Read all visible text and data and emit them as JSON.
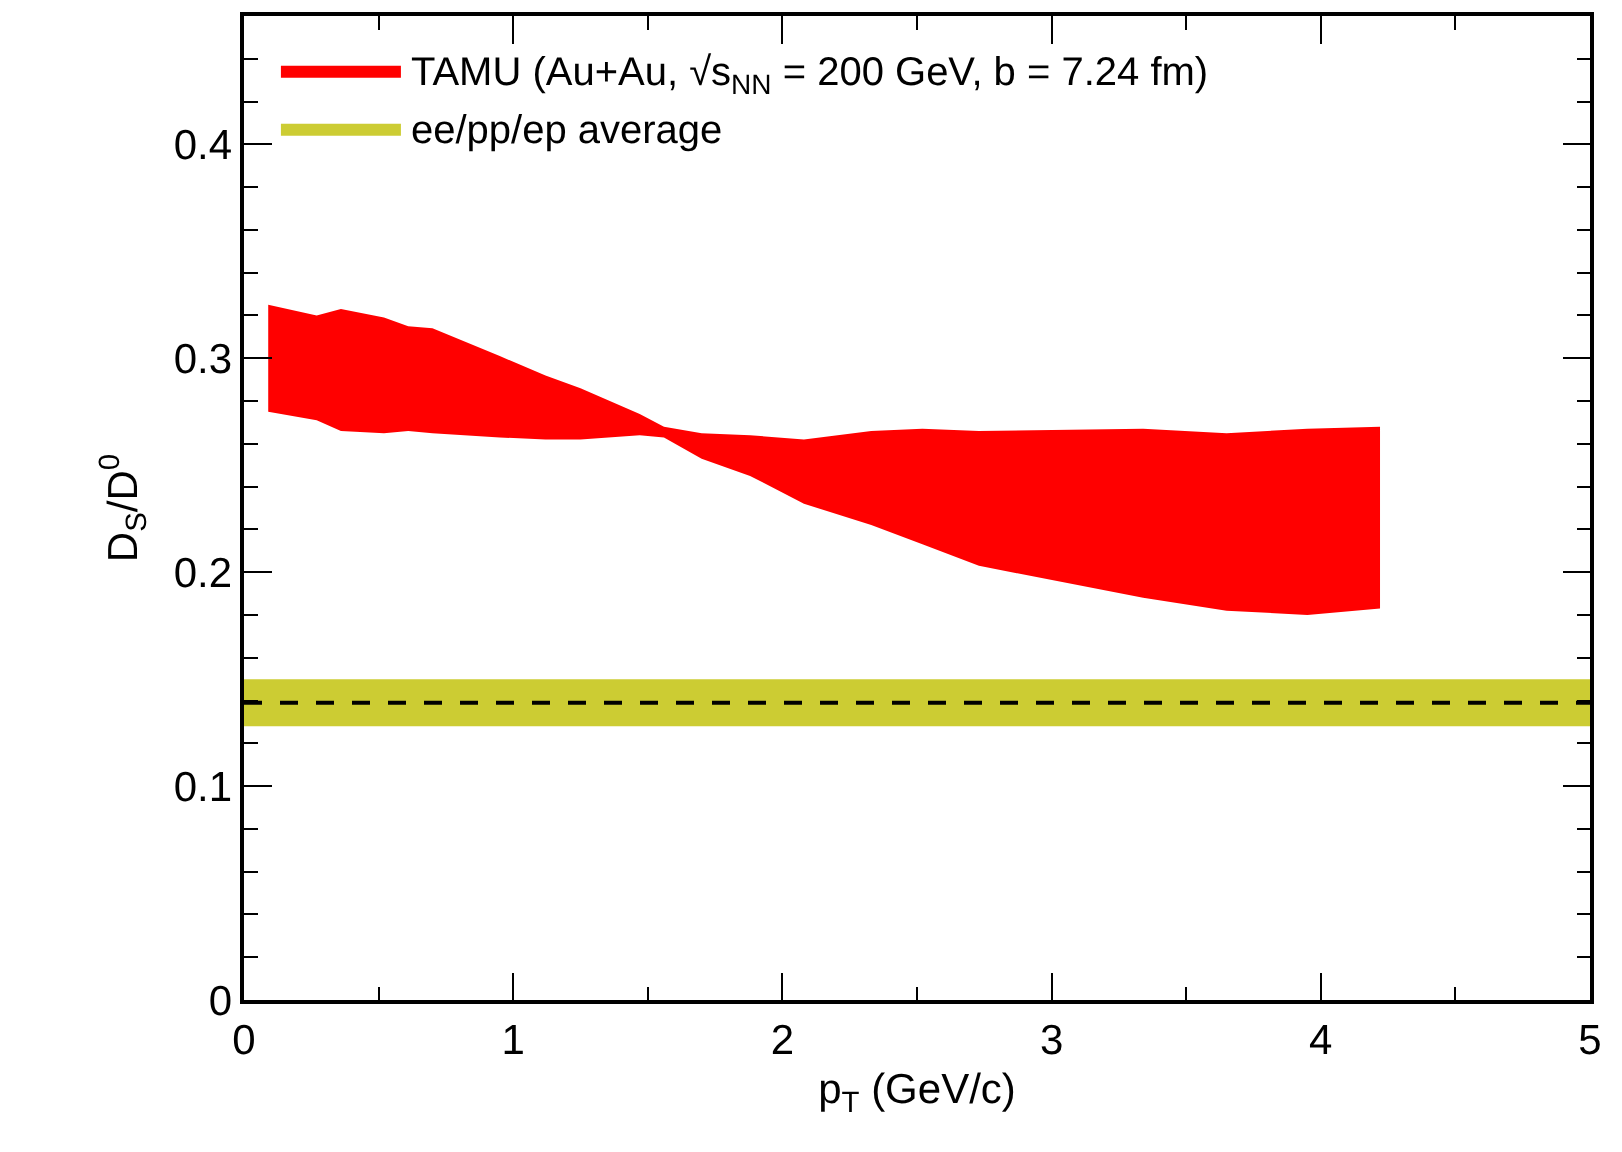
{
  "chart_data": {
    "type": "area",
    "xlabel": "p$_{T}$ (GeV/c)",
    "ylabel": "D$_{S}$/D$^{0}$",
    "series": [
      {
        "name": "TAMU (Au+Au, √s$_{NN}$ = 200 GeV, b = 7.24 fm)",
        "color": "#ff0000",
        "values": [
          null,
          null,
          null,
          null,
          null,
          null,
          null,
          null,
          null,
          null,
          null,
          null,
          null,
          null,
          null,
          null,
          null,
          null,
          null,
          null,
          null
        ],
        "x": [
          0.09,
          0.27,
          0.36,
          0.52,
          0.61,
          0.7,
          0.95,
          1.12,
          1.25,
          1.47,
          1.56,
          1.7,
          1.88,
          2.08,
          2.33,
          2.52,
          2.73,
          3.34,
          3.65,
          3.95,
          4.22
        ],
        "upper": [
          0.325,
          0.32,
          0.323,
          0.319,
          0.315,
          0.314,
          0.301,
          0.292,
          0.286,
          0.274,
          0.268,
          0.265,
          0.264,
          0.262,
          0.266,
          0.267,
          0.266,
          0.267,
          0.265,
          0.267,
          0.268
        ],
        "lower": [
          0.275,
          0.271,
          0.266,
          0.265,
          0.266,
          0.265,
          0.263,
          0.262,
          0.262,
          0.264,
          0.263,
          0.253,
          0.245,
          0.232,
          0.222,
          0.213,
          0.203,
          0.188,
          0.182,
          0.18,
          0.183
        ]
      }
    ],
    "bands": [
      {
        "axis": "y",
        "from": 0.128,
        "to": 0.15,
        "label": "ee/pp/ep average",
        "color": "#cccc33"
      }
    ],
    "ref_lines": [
      {
        "axis": "y",
        "value": 0.139,
        "line_style": "dashed",
        "color": "#000000"
      }
    ],
    "xlim": [
      0,
      5
    ],
    "ylim": [
      0,
      0.46
    ],
    "xticks": [
      0,
      1,
      2,
      3,
      4,
      5
    ],
    "yticks": [
      0,
      0.1,
      0.2,
      0.3,
      0.4
    ],
    "grid": false,
    "legend": "top left"
  }
}
